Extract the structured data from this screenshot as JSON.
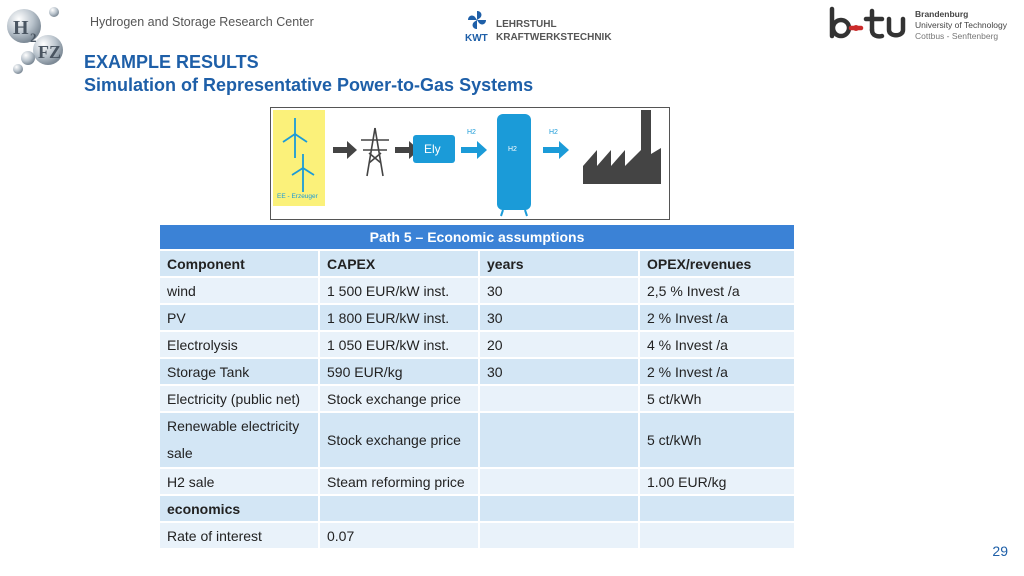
{
  "header": {
    "center_name": "Hydrogen and Storage Research Center",
    "kwt_label": "KWT",
    "kwt_line1": "LEHRSTUHL",
    "kwt_line2": "KRAFTWERKSTECHNIK",
    "btu_line1": "Brandenburg",
    "btu_line2": "University of Technology",
    "btu_line3": "Cottbus - Senftenberg"
  },
  "title": {
    "line1": "EXAMPLE RESULTS",
    "line2": "Simulation of Representative Power-to-Gas Systems"
  },
  "diagram": {
    "ee_label": "EE - Erzeuger",
    "ely_label": "Ely",
    "h2_arrow1": "H2",
    "h2_tank": "H2",
    "h2_arrow2": "H2"
  },
  "table": {
    "heading": "Path 5 – Economic assumptions",
    "columns": [
      "Component",
      "CAPEX",
      "years",
      "OPEX/revenues"
    ],
    "rows": [
      [
        "wind",
        "1 500 EUR/kW inst.",
        "30",
        "2,5 % Invest /a"
      ],
      [
        "PV",
        "1 800 EUR/kW inst.",
        "30",
        "2 % Invest /a"
      ],
      [
        "Electrolysis",
        "1 050 EUR/kW inst.",
        "20",
        "4 % Invest /a"
      ],
      [
        "Storage Tank",
        "590 EUR/kg",
        "30",
        "2 % Invest /a"
      ],
      [
        "Electricity (public net)",
        "Stock  exchange price",
        "",
        "5 ct/kWh"
      ],
      [
        "Renewable electricity sale",
        "Stock  exchange price",
        "",
        "5 ct/kWh"
      ],
      [
        "H2 sale",
        "Steam reforming price",
        "",
        "1.00 EUR/kg"
      ],
      [
        "economics",
        "",
        "",
        ""
      ],
      [
        "Rate of interest",
        "0.07",
        "",
        ""
      ]
    ]
  },
  "page_number": "29",
  "colors": {
    "accent": "#1e5fa8",
    "table_header": "#3b82d6",
    "diagram_blue": "#1b9bd8"
  }
}
